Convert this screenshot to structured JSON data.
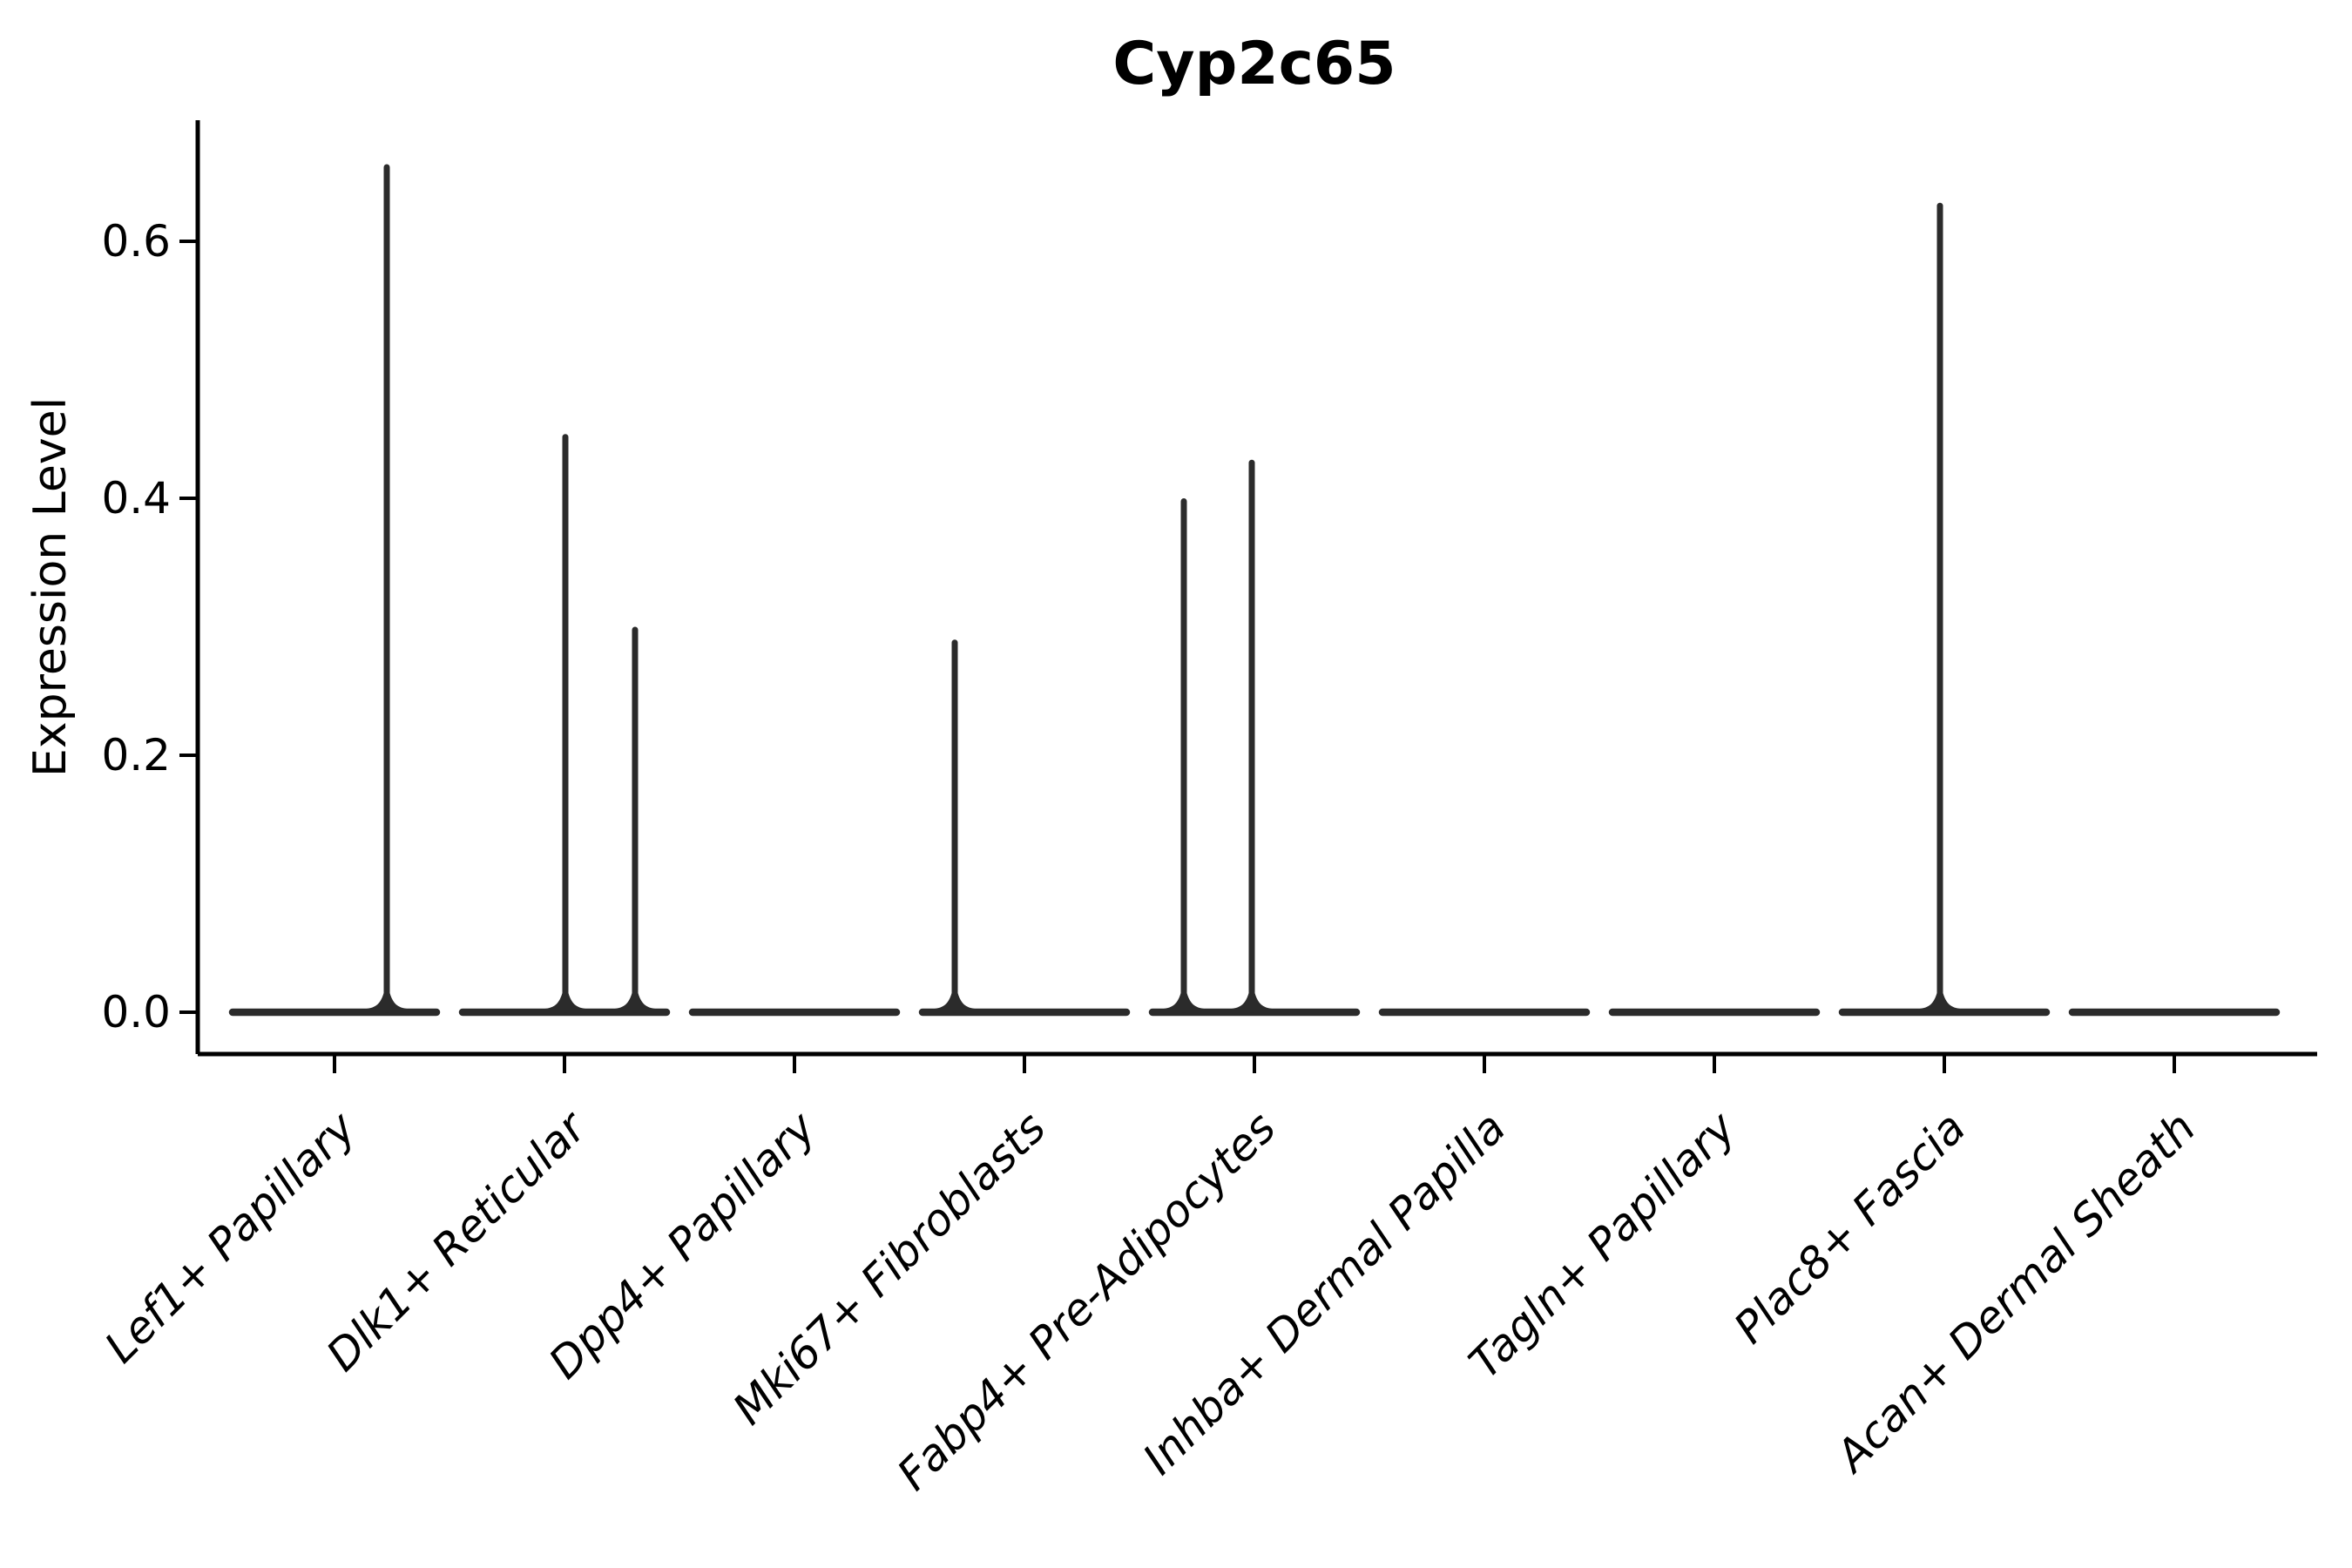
{
  "figure": {
    "title": "Cyp2c65",
    "background_color": "#ffffff",
    "axis_color": "#000000",
    "text_color": "#000000",
    "violin_color": "#2b2b2b"
  },
  "chart_data": {
    "type": "violin",
    "title": "Cyp2c65",
    "xlabel": "",
    "ylabel": "Expression Level",
    "categories": [
      "Lef1+ Papillary",
      "Dlk1+ Reticular",
      "Dpp4+ Papillary",
      "Mki67+ Fibroblasts",
      "Fabp4+ Pre-Adipocytes",
      "Inhba+ Dermal Papilla",
      "Tagln+ Papillary",
      "Plac8+ Fascia",
      "Acan+ Dermal Sheath"
    ],
    "ytick_labels": [
      "0.0",
      "0.2",
      "0.4",
      "0.6"
    ],
    "yticks": [
      0.0,
      0.2,
      0.4,
      0.6
    ],
    "ylim": [
      -0.033,
      0.698
    ],
    "grid": false,
    "legend": "none",
    "baseline_value": 0.0,
    "violins": [
      {
        "category": "Lef1+ Papillary",
        "max_expression": 0.66,
        "spikes": [
          {
            "offset": 60,
            "value": 0.66
          }
        ]
      },
      {
        "category": "Dlk1+ Reticular",
        "max_expression": 0.45,
        "spikes": [
          {
            "offset": 1,
            "value": 0.45
          },
          {
            "offset": 81,
            "value": 0.3
          }
        ]
      },
      {
        "category": "Dpp4+ Papillary",
        "max_expression": 0.0,
        "spikes": []
      },
      {
        "category": "Mki67+ Fibroblasts",
        "max_expression": 0.29,
        "spikes": [
          {
            "offset": -80,
            "value": 0.29
          }
        ]
      },
      {
        "category": "Fabp4+ Pre-Adipocytes",
        "max_expression": 0.43,
        "spikes": [
          {
            "offset": -81,
            "value": 0.4
          },
          {
            "offset": -3,
            "value": 0.43
          }
        ]
      },
      {
        "category": "Inhba+ Dermal Papilla",
        "max_expression": 0.0,
        "spikes": []
      },
      {
        "category": "Tagln+ Papillary",
        "max_expression": 0.0,
        "spikes": []
      },
      {
        "category": "Plac8+ Fascia",
        "max_expression": 0.63,
        "spikes": [
          {
            "offset": -5,
            "value": 0.63
          }
        ]
      },
      {
        "category": "Acan+ Dermal Sheath",
        "max_expression": 0.0,
        "spikes": []
      }
    ]
  }
}
